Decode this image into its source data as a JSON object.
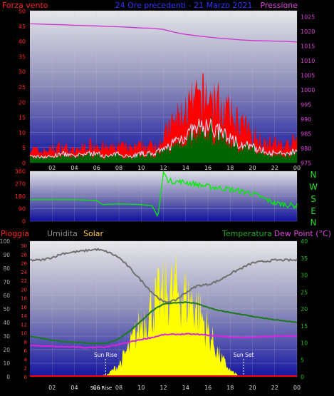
{
  "header": {
    "title": "24 Ore precedenti - 21 Marzo 2021",
    "wind_label": "Forza vento",
    "pressure_label": "Pressione"
  },
  "rain_header": {
    "pioggia": "Pioggia",
    "umidita": "Umidita",
    "solar": "Solar",
    "temperatura": "Temperatura",
    "dewpoint": "Dew Point (°C)"
  },
  "direction_letters": [
    "N",
    "W",
    "S",
    "E",
    "N"
  ],
  "sun": {
    "rise_label": "Sun Rise",
    "set_label": "Sun Set",
    "rise_tick": "Sun Rise"
  },
  "colors": {
    "wind_gust": "#ff0000",
    "wind_avg": "#e0e0ff",
    "wind_calm": "#006400",
    "pressure": "#cc33cc",
    "direction": "#00ee00",
    "humidity": "#707070",
    "temperature": "#1a7a1a",
    "dewpoint": "#dd22dd",
    "solar": "#ffff00",
    "rain": "#ff0000"
  },
  "chart_data": [
    {
      "type": "line",
      "name": "wind-pressure",
      "xlabel": "",
      "x_ticks": [
        "02",
        "04",
        "06",
        "08",
        "10",
        "12",
        "14",
        "16",
        "18",
        "20",
        "22",
        "00"
      ],
      "left_axis": {
        "label": "Forza vento",
        "ticks": [
          0,
          5,
          10,
          15,
          20,
          25,
          30,
          35,
          40,
          45,
          50
        ],
        "range": [
          0,
          50
        ]
      },
      "right_axis": {
        "label": "Pressione",
        "ticks": [
          975,
          980,
          985,
          990,
          995,
          1000,
          1005,
          1010,
          1015,
          1020,
          1025
        ],
        "range": [
          975,
          1027
        ]
      },
      "hours": [
        0,
        1,
        2,
        3,
        4,
        5,
        6,
        7,
        8,
        9,
        10,
        11,
        12,
        13,
        14,
        15,
        16,
        17,
        18,
        19,
        20,
        21,
        22,
        23,
        24
      ],
      "series": [
        {
          "name": "Forza vento",
          "values": [
            5,
            4,
            5,
            6,
            4,
            6,
            7,
            5,
            6,
            5,
            6,
            6,
            9,
            15,
            19,
            22,
            24,
            21,
            17,
            14,
            10,
            8,
            7,
            6,
            8
          ]
        },
        {
          "values": [
            2,
            2,
            2,
            3,
            2,
            3,
            3,
            2,
            3,
            2,
            3,
            3,
            4,
            7,
            9,
            11,
            12,
            10,
            8,
            6,
            5,
            4,
            3,
            3,
            4
          ]
        },
        {
          "name": "Pressione",
          "values": [
            1022.5,
            1022.4,
            1022.3,
            1022.2,
            1022.0,
            1021.9,
            1021.8,
            1021.6,
            1021.5,
            1021.3,
            1021.1,
            1021.0,
            1020.6,
            1019.6,
            1018.9,
            1018.4,
            1018.0,
            1017.6,
            1017.3,
            1017.0,
            1016.8,
            1016.7,
            1016.6,
            1016.5,
            1016.3
          ]
        }
      ]
    },
    {
      "type": "line",
      "name": "wind-direction",
      "left_axis": {
        "ticks": [
          0,
          90,
          180,
          270,
          360
        ],
        "range": [
          0,
          360
        ]
      },
      "right_labels": [
        "N",
        "W",
        "S",
        "E",
        "N"
      ],
      "hours": [
        0,
        2,
        4,
        6,
        6.5,
        8,
        10,
        11,
        11.5,
        12,
        12.5,
        14,
        16,
        18,
        20,
        22,
        24
      ],
      "series": [
        {
          "values": [
            155,
            155,
            155,
            150,
            120,
            125,
            120,
            110,
            30,
            355,
            290,
            280,
            250,
            230,
            200,
            130,
            110
          ]
        }
      ]
    },
    {
      "type": "line",
      "name": "rain-humidity-temperature",
      "x_ticks": [
        "02",
        "04",
        "06",
        "08",
        "10",
        "12",
        "14",
        "16",
        "18",
        "20",
        "22",
        "00"
      ],
      "left_axis_outer": {
        "label": "Umidita",
        "ticks": [
          0,
          10,
          20,
          30,
          40,
          50,
          60,
          70,
          80,
          90,
          100
        ],
        "range": [
          0,
          100
        ]
      },
      "left_axis_inner": {
        "label": "Pioggia",
        "ticks": [
          0,
          2,
          4,
          6,
          8,
          10,
          12,
          14,
          16,
          18,
          20,
          22,
          24,
          26,
          28,
          30
        ]
      },
      "right_axis": {
        "label": "Temperatura",
        "ticks": [
          0,
          5,
          10,
          15,
          20,
          25,
          30,
          35,
          40
        ],
        "range": [
          0,
          40
        ]
      },
      "hours": [
        0,
        1,
        2,
        3,
        4,
        5,
        6,
        7,
        8,
        9,
        10,
        11,
        12,
        13,
        14,
        15,
        16,
        17,
        18,
        19,
        20,
        21,
        22,
        23,
        24
      ],
      "series": [
        {
          "name": "Umidita",
          "values": [
            86,
            86,
            88,
            91,
            92,
            93,
            94,
            92,
            88,
            80,
            71,
            62,
            55,
            56,
            62,
            67,
            68,
            71,
            76,
            80,
            84,
            85,
            86,
            86,
            86
          ]
        },
        {
          "name": "Temperatura",
          "values": [
            12.0,
            11.4,
            10.8,
            10.4,
            10.2,
            10.0,
            9.8,
            10.0,
            11.2,
            13.5,
            16.5,
            19.5,
            21.5,
            21.8,
            22.0,
            21.6,
            20.4,
            19.5,
            19.0,
            18.4,
            17.8,
            17.3,
            16.8,
            16.4,
            16.0
          ]
        },
        {
          "name": "Dew Point (°C)",
          "values": [
            9.2,
            9.1,
            9.0,
            8.8,
            8.8,
            8.6,
            8.6,
            8.8,
            9.5,
            10.3,
            11.0,
            11.6,
            12.4,
            12.5,
            12.6,
            12.5,
            12.3,
            12.0,
            11.7,
            11.6,
            11.6,
            11.8,
            12.0,
            12.0,
            12.0
          ]
        },
        {
          "name": "Solar",
          "values": [
            0,
            0,
            0,
            0,
            0,
            0,
            0,
            2,
            10,
            25,
            45,
            58,
            68,
            72,
            66,
            58,
            38,
            18,
            5,
            0,
            0,
            0,
            0,
            0,
            0
          ]
        },
        {
          "name": "Pioggia",
          "values": [
            0,
            0,
            0,
            0,
            0,
            0,
            0,
            0,
            0,
            0,
            0,
            0,
            0,
            0,
            0,
            0,
            0,
            0,
            0,
            0,
            0,
            0,
            0,
            0,
            0
          ]
        }
      ],
      "sun_rise_hour": 6.8,
      "sun_set_hour": 19.2
    }
  ]
}
